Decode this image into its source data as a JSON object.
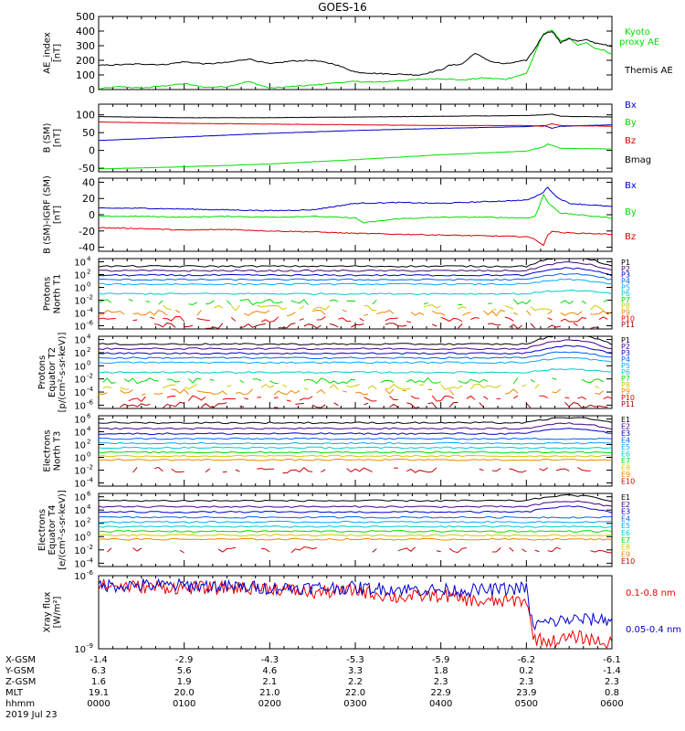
{
  "title": "GOES-16",
  "chart_data": [
    {
      "type": "line",
      "panel": "ae",
      "ylabel": [
        "AE_index",
        "[nT]"
      ],
      "ylim": [
        0,
        500
      ],
      "yticks": [
        {
          "v": 500,
          "label": "500"
        },
        {
          "v": 400,
          "label": "400"
        },
        {
          "v": 300,
          "label": "300"
        },
        {
          "v": 200,
          "label": "200"
        },
        {
          "v": 100,
          "label": "100"
        },
        {
          "v": 0,
          "label": "0"
        }
      ],
      "series": [
        {
          "name": "Kyoto",
          "name2": "proxy AE",
          "color": "#00dd00",
          "x": [
            0.0,
            0.25,
            0.5,
            0.75,
            1.0,
            1.25,
            1.5,
            1.75,
            2.0,
            2.25,
            2.5,
            2.75,
            3.0,
            3.25,
            3.5,
            3.75,
            4.0,
            4.25,
            4.5,
            4.75,
            5.0,
            5.1,
            5.2,
            5.3,
            5.4,
            5.5,
            5.6,
            5.7,
            5.8,
            5.9,
            6.0
          ],
          "y": [
            5,
            20,
            10,
            25,
            40,
            15,
            20,
            55,
            10,
            20,
            30,
            45,
            55,
            50,
            60,
            70,
            75,
            65,
            80,
            70,
            110,
            250,
            380,
            410,
            330,
            355,
            300,
            320,
            280,
            270,
            240
          ]
        },
        {
          "name": "Themis AE",
          "color": "#000000",
          "x": [
            0.0,
            0.25,
            0.5,
            0.75,
            1.0,
            1.25,
            1.5,
            1.75,
            2.0,
            2.25,
            2.5,
            2.75,
            3.0,
            3.25,
            3.5,
            3.75,
            4.0,
            4.1,
            4.25,
            4.4,
            4.5,
            4.6,
            4.75,
            5.0,
            5.1,
            5.2,
            5.3,
            5.4,
            5.5,
            5.6,
            5.7,
            5.8,
            5.9,
            6.0
          ],
          "y": [
            165,
            170,
            175,
            170,
            190,
            175,
            185,
            210,
            175,
            195,
            200,
            175,
            120,
            110,
            105,
            100,
            135,
            165,
            175,
            250,
            215,
            190,
            175,
            200,
            280,
            380,
            400,
            320,
            350,
            330,
            340,
            320,
            310,
            290
          ]
        }
      ]
    },
    {
      "type": "line",
      "panel": "bsm",
      "ylabel": [
        "B (SM)",
        "[nT]"
      ],
      "ylim": [
        -60,
        130
      ],
      "yticks": [
        {
          "v": 100,
          "label": "100"
        },
        {
          "v": 50,
          "label": "50"
        },
        {
          "v": 0,
          "label": "0"
        },
        {
          "v": -50,
          "label": "-50"
        }
      ],
      "series": [
        {
          "name": "Bx",
          "color": "#0000cc",
          "x": [
            0,
            1,
            2,
            3,
            4,
            5,
            5.2,
            5.3,
            5.4,
            6
          ],
          "y": [
            28,
            38,
            48,
            56,
            62,
            67,
            70,
            62,
            68,
            72
          ]
        },
        {
          "name": "By",
          "color": "#00dd00",
          "x": [
            0,
            1,
            2,
            3,
            4,
            5,
            5.2,
            5.25,
            5.4,
            6
          ],
          "y": [
            -52,
            -46,
            -38,
            -26,
            -12,
            -2,
            10,
            18,
            6,
            4
          ]
        },
        {
          "name": "Bz",
          "color": "#dd0000",
          "x": [
            0,
            1,
            2,
            3,
            4,
            5,
            5.2,
            5.3,
            5.4,
            6
          ],
          "y": [
            80,
            76,
            74,
            72,
            70,
            70,
            68,
            75,
            70,
            68
          ]
        },
        {
          "name": "Bmag",
          "color": "#000000",
          "x": [
            0,
            1,
            2,
            3,
            4,
            5,
            5.2,
            5.3,
            5.4,
            6
          ],
          "y": [
            95,
            92,
            92,
            94,
            96,
            98,
            100,
            102,
            96,
            94
          ]
        }
      ]
    },
    {
      "type": "line",
      "panel": "bigrf",
      "ylabel": [
        "B (SM)-IGRF (SM)",
        "[nT]"
      ],
      "ylim": [
        -45,
        45
      ],
      "yticks": [
        {
          "v": 40,
          "label": "40"
        },
        {
          "v": 20,
          "label": "20"
        },
        {
          "v": 0,
          "label": "0"
        },
        {
          "v": -20,
          "label": "-20"
        },
        {
          "v": -40,
          "label": "-40"
        }
      ],
      "series": [
        {
          "name": "Bx",
          "color": "#0000cc",
          "x": [
            0,
            0.5,
            1,
            1.5,
            2,
            2.5,
            2.75,
            3,
            3.5,
            4,
            4.5,
            5,
            5.1,
            5.2,
            5.25,
            5.35,
            5.5,
            6
          ],
          "y": [
            8,
            8,
            7,
            6,
            5,
            6,
            10,
            14,
            15,
            14,
            16,
            18,
            22,
            28,
            34,
            22,
            14,
            10
          ]
        },
        {
          "name": "By",
          "color": "#00dd00",
          "x": [
            0,
            0.5,
            1,
            1.5,
            2,
            2.5,
            3,
            3.1,
            3.5,
            4,
            4.5,
            5,
            5.1,
            5.15,
            5.2,
            5.25,
            5.4,
            6
          ],
          "y": [
            -2,
            -2,
            -3,
            -2,
            -3,
            -2,
            -4,
            -10,
            -5,
            -3,
            -3,
            -4,
            -2,
            10,
            25,
            15,
            2,
            -4
          ]
        },
        {
          "name": "Bz",
          "color": "#dd0000",
          "x": [
            0,
            0.5,
            1,
            1.5,
            2,
            2.5,
            3,
            3.5,
            4,
            4.5,
            5,
            5.1,
            5.2,
            5.25,
            5.3,
            5.4,
            6
          ],
          "y": [
            -16,
            -17,
            -19,
            -18,
            -20,
            -21,
            -23,
            -24,
            -25,
            -26,
            -27,
            -30,
            -38,
            -25,
            -20,
            -22,
            -24
          ]
        }
      ]
    },
    {
      "type": "line",
      "panel": "protons_t1",
      "log": true,
      "ylabel": [
        "Protons",
        "North T1"
      ],
      "ylim": [
        -6.5,
        4.5
      ],
      "yticks": [
        {
          "v": 4,
          "label": "10",
          "exp": "4"
        },
        {
          "v": 2,
          "label": "10",
          "exp": "2"
        },
        {
          "v": 0,
          "label": "10",
          "exp": "0"
        },
        {
          "v": -2,
          "label": "10",
          "exp": "-2"
        },
        {
          "v": -4,
          "label": "10",
          "exp": "-4"
        },
        {
          "v": -6,
          "label": "10",
          "exp": "-6"
        }
      ],
      "series": [
        {
          "name": "P1",
          "color": "#000000",
          "base": 3.3
        },
        {
          "name": "P2",
          "color": "#4b0082",
          "base": 2.6
        },
        {
          "name": "P3",
          "color": "#0000cc",
          "base": 1.9
        },
        {
          "name": "P4",
          "color": "#0066ee",
          "base": 1.2
        },
        {
          "name": "P5",
          "color": "#00aaff",
          "base": 0.5
        },
        {
          "name": "P6",
          "color": "#00cccc",
          "base": -1.0
        },
        {
          "name": "P7",
          "color": "#00dd00",
          "base": -2.3
        },
        {
          "name": "P8",
          "color": "#cccc00",
          "base": -3.2
        },
        {
          "name": "P9",
          "color": "#ee8800",
          "base": -4.0
        },
        {
          "name": "P10",
          "color": "#ee0000",
          "base": -5.0
        },
        {
          "name": "P11",
          "color": "#aa0000",
          "base": -6.0
        }
      ]
    },
    {
      "type": "line",
      "panel": "protons_t2",
      "log": true,
      "ylabel": [
        "Protons",
        "Equator T2",
        "[p/(cm²-s-sr-keV)]"
      ],
      "ylim": [
        -6.5,
        4.5
      ],
      "yticks": [
        {
          "v": 4,
          "label": "10",
          "exp": "4"
        },
        {
          "v": 2,
          "label": "10",
          "exp": "2"
        },
        {
          "v": 0,
          "label": "10",
          "exp": "0"
        },
        {
          "v": -2,
          "label": "10",
          "exp": "-2"
        },
        {
          "v": -4,
          "label": "10",
          "exp": "-4"
        },
        {
          "v": -6,
          "label": "10",
          "exp": "-6"
        }
      ],
      "series": [
        {
          "name": "P1",
          "color": "#000000",
          "base": 3.3
        },
        {
          "name": "P2",
          "color": "#4b0082",
          "base": 2.6
        },
        {
          "name": "P3",
          "color": "#0000cc",
          "base": 1.9
        },
        {
          "name": "P4",
          "color": "#0066ee",
          "base": 1.2
        },
        {
          "name": "P5",
          "color": "#00aaff",
          "base": 0.5
        },
        {
          "name": "P6",
          "color": "#00cccc",
          "base": -1.0
        },
        {
          "name": "P7",
          "color": "#00dd00",
          "base": -2.3
        },
        {
          "name": "P8",
          "color": "#cccc00",
          "base": -3.2
        },
        {
          "name": "P9",
          "color": "#ee8800",
          "base": -4.0
        },
        {
          "name": "P10",
          "color": "#ee0000",
          "base": -5.0
        },
        {
          "name": "P11",
          "color": "#aa0000",
          "base": -6.0
        }
      ]
    },
    {
      "type": "line",
      "panel": "electrons_t3",
      "log": true,
      "ylabel": [
        "Electrons",
        "North T3"
      ],
      "ylim": [
        -4.5,
        6.5
      ],
      "yticks": [
        {
          "v": 6,
          "label": "10",
          "exp": "6"
        },
        {
          "v": 4,
          "label": "10",
          "exp": "4"
        },
        {
          "v": 2,
          "label": "10",
          "exp": "2"
        },
        {
          "v": 0,
          "label": "10",
          "exp": "0"
        },
        {
          "v": -2,
          "label": "10",
          "exp": "-2"
        },
        {
          "v": -4,
          "label": "10",
          "exp": "-4"
        }
      ],
      "series": [
        {
          "name": "E1",
          "color": "#000000",
          "base": 5.4
        },
        {
          "name": "E2",
          "color": "#4b0082",
          "base": 4.5
        },
        {
          "name": "E3",
          "color": "#0000cc",
          "base": 3.7
        },
        {
          "name": "E4",
          "color": "#0066ee",
          "base": 2.9
        },
        {
          "name": "E5",
          "color": "#00aaff",
          "base": 2.2
        },
        {
          "name": "E6",
          "color": "#00cccc",
          "base": 1.5
        },
        {
          "name": "E7",
          "color": "#00dd00",
          "base": 0.8
        },
        {
          "name": "E8",
          "color": "#cccc00",
          "base": 0.2
        },
        {
          "name": "E9",
          "color": "#ee8800",
          "base": -0.4
        },
        {
          "name": "E10",
          "color": "#cc0000",
          "base": -2.0
        }
      ]
    },
    {
      "type": "line",
      "panel": "electrons_t4",
      "log": true,
      "ylabel": [
        "Electrons",
        "Equator T4",
        "[e/(cm²-s-sr-keV)]"
      ],
      "ylim": [
        -4.5,
        6.5
      ],
      "yticks": [
        {
          "v": 6,
          "label": "10",
          "exp": "6"
        },
        {
          "v": 4,
          "label": "10",
          "exp": "4"
        },
        {
          "v": 2,
          "label": "10",
          "exp": "2"
        },
        {
          "v": 0,
          "label": "10",
          "exp": "0"
        },
        {
          "v": -2,
          "label": "10",
          "exp": "-2"
        },
        {
          "v": -4,
          "label": "10",
          "exp": "-4"
        }
      ],
      "series": [
        {
          "name": "E1",
          "color": "#000000",
          "base": 5.4
        },
        {
          "name": "E2",
          "color": "#4b0082",
          "base": 4.5
        },
        {
          "name": "E3",
          "color": "#0000cc",
          "base": 3.7
        },
        {
          "name": "E4",
          "color": "#0066ee",
          "base": 2.9
        },
        {
          "name": "E5",
          "color": "#00aaff",
          "base": 2.2
        },
        {
          "name": "E6",
          "color": "#00cccc",
          "base": 1.5
        },
        {
          "name": "E7",
          "color": "#00dd00",
          "base": 0.8
        },
        {
          "name": "E8",
          "color": "#cccc00",
          "base": 0.2
        },
        {
          "name": "E9",
          "color": "#ee8800",
          "base": -0.4
        },
        {
          "name": "E10",
          "color": "#cc0000",
          "base": -2.0
        }
      ]
    },
    {
      "type": "line",
      "panel": "xray",
      "log": true,
      "ylabel": [
        "Xray flux",
        "[W/m²]"
      ],
      "ylim": [
        -9,
        -6
      ],
      "yticks": [
        {
          "v": -6,
          "label": "10",
          "exp": "-6"
        },
        {
          "v": -9,
          "label": "10",
          "exp": "-9"
        }
      ],
      "series": [
        {
          "name": "0.1-0.8 nm",
          "color": "#ee0000",
          "x": [
            0,
            1,
            2,
            2.5,
            3,
            3.5,
            4,
            4.5,
            5.0,
            5.05,
            5.1,
            5.3,
            5.6,
            6
          ],
          "y": [
            -6.4,
            -6.5,
            -6.5,
            -6.7,
            -6.6,
            -6.9,
            -6.8,
            -7.1,
            -7.0,
            -8.0,
            -8.6,
            -8.7,
            -8.5,
            -8.8
          ]
        },
        {
          "name": "0.05-0.4 nm",
          "color": "#0000cc",
          "x": [
            0,
            1,
            2,
            3,
            4,
            4.5,
            5.0,
            5.05,
            5.1,
            5.5,
            6
          ],
          "y": [
            -6.4,
            -6.4,
            -6.5,
            -6.5,
            -6.6,
            -6.6,
            -6.5,
            -7.8,
            -8.0,
            -7.8,
            -7.8
          ]
        }
      ]
    }
  ],
  "xaxis": {
    "hours": [
      0,
      1,
      2,
      3,
      4,
      5,
      6
    ],
    "rows": [
      {
        "label": "X-GSM",
        "values": [
          "-1.4",
          "-2.9",
          "-4.3",
          "-5.3",
          "-5.9",
          "-6.2",
          "-6.1"
        ]
      },
      {
        "label": "Y-GSM",
        "values": [
          "6.3",
          "5.6",
          "4.6",
          "3.3",
          "1.8",
          "0.2",
          "-1.4"
        ]
      },
      {
        "label": "Z-GSM",
        "values": [
          "1.6",
          "1.9",
          "2.1",
          "2.2",
          "2.3",
          "2.3",
          "2.3"
        ]
      },
      {
        "label": "MLT",
        "values": [
          "19.1",
          "20.0",
          "21.0",
          "22.0",
          "22.9",
          "23.9",
          "0.8"
        ]
      },
      {
        "label": "hhmm",
        "values": [
          "0000",
          "0100",
          "0200",
          "0300",
          "0400",
          "0500",
          "0600"
        ]
      }
    ],
    "date": "2019 Jul 23"
  }
}
